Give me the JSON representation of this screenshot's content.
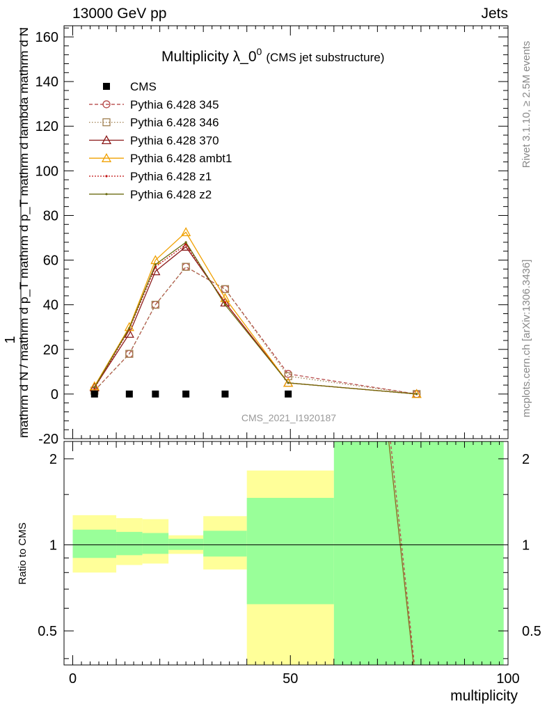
{
  "header": {
    "left": "13000 GeV pp",
    "right": "Jets"
  },
  "side": {
    "top": "Rivet 3.1.10, ≥ 2.5M events",
    "bottom": "mcplots.cern.ch [arXiv:1306.3436]"
  },
  "chart_data": {
    "type": "line",
    "title": "Multiplicity λ_0",
    "title_sup": "0",
    "title_note": "(CMS jet substructure)",
    "watermark": "CMS_2021_I1920187",
    "xlabel": "multiplicity",
    "ylabel_main_top": "1",
    "ylabel_main": "mathrm d N / mathrm d p_T mathrm d p_T mathrm d lambda mathrm d N",
    "ylabel_ratio": "Ratio to CMS",
    "xlim": [
      -2,
      100
    ],
    "ylim": [
      -20,
      165
    ],
    "yticks": [
      -20,
      0,
      20,
      40,
      60,
      80,
      100,
      120,
      140,
      160
    ],
    "xticks": [
      0,
      50,
      100
    ],
    "ratio_ylim": [
      0.38,
      2.3
    ],
    "ratio_yticks": [
      0.5,
      1,
      2
    ],
    "x": [
      5,
      13,
      19,
      26,
      35,
      49.5,
      79
    ],
    "data": {
      "name": "CMS",
      "values": [
        0,
        0,
        0,
        0,
        0,
        0,
        0
      ]
    },
    "series": [
      {
        "name": "Pythia 6.428 345",
        "color": "#b74a4a",
        "marker": "circle",
        "dash": "5,3",
        "values": [
          1.5,
          18,
          40,
          57,
          47,
          9,
          0
        ]
      },
      {
        "name": "Pythia 6.428 346",
        "color": "#a08050",
        "marker": "square",
        "dash": "1.5,2.5",
        "values": [
          1.5,
          18,
          40,
          57,
          47,
          8,
          0
        ]
      },
      {
        "name": "Pythia 6.428 370",
        "color": "#8b1a1a",
        "marker": "triangle",
        "dash": "",
        "values": [
          3,
          27,
          55,
          66,
          41,
          5,
          0
        ]
      },
      {
        "name": "Pythia 6.428 ambt1",
        "color": "#f0a000",
        "marker": "triangle",
        "dash": "",
        "values": [
          3.5,
          30,
          60,
          72.5,
          43,
          5,
          0
        ]
      },
      {
        "name": "Pythia 6.428 z1",
        "color": "#c01010",
        "marker": "dot",
        "dash": "2,2",
        "values": [
          2.5,
          29,
          57,
          67,
          41,
          5,
          0
        ]
      },
      {
        "name": "Pythia 6.428 z2",
        "color": "#6b6b10",
        "marker": "dot",
        "dash": "",
        "values": [
          3,
          29.5,
          58,
          68,
          40,
          5,
          0
        ]
      }
    ],
    "ratio_bands": [
      {
        "x0": 0,
        "x1": 10,
        "yellow": [
          0.8,
          1.27
        ],
        "green": [
          0.9,
          1.13
        ]
      },
      {
        "x0": 10,
        "x1": 16,
        "yellow": [
          0.85,
          1.24
        ],
        "green": [
          0.92,
          1.11
        ]
      },
      {
        "x0": 16,
        "x1": 22,
        "yellow": [
          0.86,
          1.23
        ],
        "green": [
          0.93,
          1.1
        ]
      },
      {
        "x0": 22,
        "x1": 30,
        "yellow": [
          0.93,
          1.08
        ],
        "green": [
          0.96,
          1.05
        ]
      },
      {
        "x0": 30,
        "x1": 40,
        "yellow": [
          0.82,
          1.26
        ],
        "green": [
          0.91,
          1.12
        ]
      },
      {
        "x0": 40,
        "x1": 60,
        "yellow": [
          0.38,
          1.82
        ],
        "green": [
          0.62,
          1.46
        ]
      },
      {
        "x0": 60,
        "x1": 99,
        "yellow": [
          2.3,
          2.3
        ],
        "green": [
          0.38,
          2.3
        ]
      }
    ],
    "ratio_lines": [
      {
        "color": "#b74a4a",
        "dash": "4,3",
        "from": [
          73,
          2.3
        ],
        "to": [
          78.5,
          0.38
        ]
      },
      {
        "color": "#8b6a20",
        "dash": "",
        "from": [
          72.6,
          2.3
        ],
        "to": [
          78.3,
          0.38
        ]
      }
    ]
  }
}
